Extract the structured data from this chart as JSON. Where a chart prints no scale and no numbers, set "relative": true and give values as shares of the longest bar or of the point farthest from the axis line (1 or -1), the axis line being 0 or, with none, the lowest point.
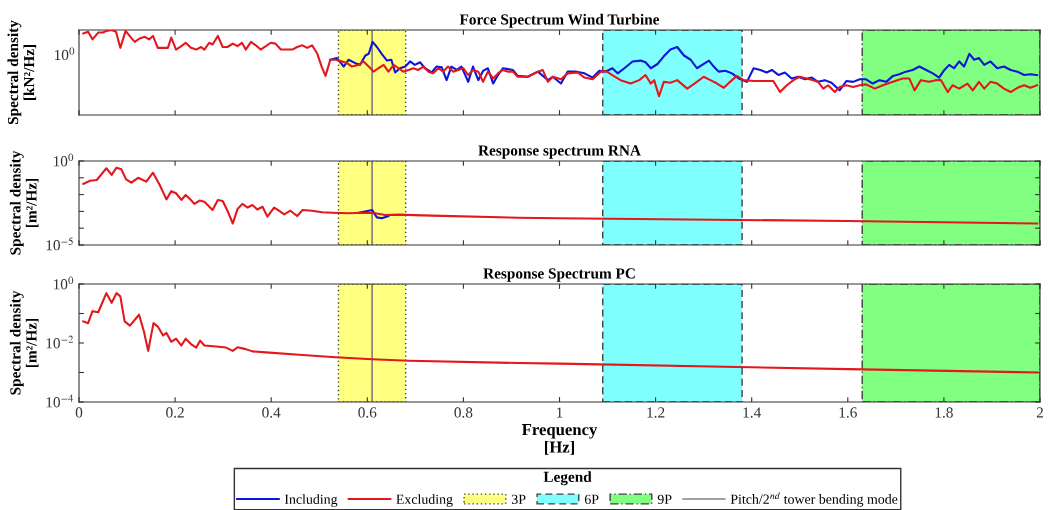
{
  "chart_data": [
    {
      "type": "line",
      "title": "Force Spectrum Wind Turbine",
      "ylabel": "Spectral density\n[kN²/Hz]",
      "relative": true,
      "annotations": [
        "10$^{0}$"
      ],
      "grid": false,
      "legend": "bottom",
      "legend_title": "Legend",
      "tick_labels": "y",
      "xlim": [
        0,
        2
      ],
      "xticks": [
        0,
        0.2,
        0.4,
        0.6,
        0.8,
        1,
        1.2,
        1.4,
        1.6,
        1.8,
        2
      ],
      "bands": [
        {
          "axis": "x",
          "from": 0.54,
          "to": 0.68,
          "label": "3P",
          "color": "#ffff80"
        },
        {
          "axis": "x",
          "from": 1.09,
          "to": 1.38,
          "label": "6P",
          "color": "#80ffff"
        },
        {
          "axis": "x",
          "from": 1.63,
          "to": 2,
          "label": "9P",
          "color": "#80ff80"
        }
      ],
      "ref_lines": [
        {
          "axis": "x",
          "value": 0.61,
          "label": "Pitch/2$^{nd}$ tower bending mode",
          "color": "#808080"
        }
      ],
      "series": [
        {
          "name": "Including",
          "color": "#0b16d9",
          "x": [
            0.523,
            0.537,
            0.551,
            0.561,
            0.575,
            0.585,
            0.596,
            0.603,
            0.611,
            0.62,
            0.63,
            0.641,
            0.65,
            0.658,
            0.668,
            0.679,
            0.689,
            0.699,
            0.71,
            0.72,
            0.734,
            0.744,
            0.755,
            0.765,
            0.775,
            0.786,
            0.796,
            0.81,
            0.82,
            0.831,
            0.841,
            0.851,
            0.862,
            0.872,
            0.882,
            0.893,
            0.903,
            0.913,
            0.934,
            0.955,
            0.976,
            0.986,
            1.003,
            1.017,
            1.035,
            1.052,
            1.069,
            1.083,
            1.096,
            1.11,
            1.121,
            1.135,
            1.152,
            1.169,
            1.179,
            1.19,
            1.204,
            1.217,
            1.231,
            1.245,
            1.259,
            1.273,
            1.286,
            1.297,
            1.311,
            1.321,
            1.331,
            1.345,
            1.359,
            1.373,
            1.39,
            1.404,
            1.418,
            1.431,
            1.442,
            1.456,
            1.469,
            1.483,
            1.497,
            1.511,
            1.525,
            1.538,
            1.552,
            1.566,
            1.583,
            1.597,
            1.611,
            1.625,
            1.638,
            1.652,
            1.666,
            1.68,
            1.694,
            1.707,
            1.721,
            1.735,
            1.749,
            1.763,
            1.777,
            1.79,
            1.801,
            1.811,
            1.821,
            1.832,
            1.842,
            1.853,
            1.863,
            1.873,
            1.884,
            1.897,
            1.911,
            1.925,
            1.939,
            1.953,
            1.967,
            1.98,
            1.994
          ],
          "values": [
            0.65,
            0.67,
            0.57,
            0.65,
            0.61,
            0.59,
            0.7,
            0.72,
            0.86,
            0.8,
            0.72,
            0.64,
            0.65,
            0.5,
            0.55,
            0.57,
            0.63,
            0.59,
            0.62,
            0.55,
            0.5,
            0.57,
            0.56,
            0.41,
            0.57,
            0.53,
            0.57,
            0.39,
            0.57,
            0.41,
            0.52,
            0.55,
            0.37,
            0.47,
            0.55,
            0.54,
            0.53,
            0.46,
            0.45,
            0.51,
            0.41,
            0.45,
            0.37,
            0.51,
            0.51,
            0.49,
            0.44,
            0.52,
            0.51,
            0.55,
            0.49,
            0.55,
            0.63,
            0.64,
            0.62,
            0.55,
            0.6,
            0.69,
            0.77,
            0.8,
            0.7,
            0.65,
            0.55,
            0.59,
            0.64,
            0.57,
            0.51,
            0.52,
            0.49,
            0.43,
            0.39,
            0.55,
            0.53,
            0.5,
            0.53,
            0.47,
            0.5,
            0.43,
            0.45,
            0.42,
            0.44,
            0.39,
            0.41,
            0.38,
            0.29,
            0.4,
            0.39,
            0.42,
            0.42,
            0.37,
            0.41,
            0.39,
            0.46,
            0.48,
            0.51,
            0.53,
            0.57,
            0.53,
            0.49,
            0.44,
            0.53,
            0.59,
            0.55,
            0.63,
            0.57,
            0.72,
            0.65,
            0.67,
            0.59,
            0.63,
            0.55,
            0.57,
            0.53,
            0.51,
            0.47,
            0.48,
            0.47
          ]
        },
        {
          "name": "Excluding",
          "color": "#e3171c",
          "x": [
            0.009,
            0.019,
            0.028,
            0.04,
            0.05,
            0.057,
            0.068,
            0.077,
            0.086,
            0.097,
            0.107,
            0.116,
            0.126,
            0.137,
            0.146,
            0.154,
            0.164,
            0.175,
            0.185,
            0.192,
            0.202,
            0.213,
            0.222,
            0.233,
            0.244,
            0.254,
            0.261,
            0.271,
            0.278,
            0.289,
            0.299,
            0.309,
            0.32,
            0.33,
            0.339,
            0.347,
            0.358,
            0.368,
            0.378,
            0.389,
            0.399,
            0.409,
            0.42,
            0.43,
            0.444,
            0.454,
            0.465,
            0.475,
            0.485,
            0.496,
            0.505,
            0.513,
            0.523,
            0.534,
            0.548,
            0.558,
            0.568,
            0.582,
            0.592,
            0.603,
            0.613,
            0.623,
            0.634,
            0.644,
            0.655,
            0.665,
            0.675,
            0.686,
            0.696,
            0.706,
            0.717,
            0.727,
            0.737,
            0.748,
            0.758,
            0.768,
            0.779,
            0.789,
            0.8,
            0.81,
            0.82,
            0.831,
            0.841,
            0.851,
            0.862,
            0.872,
            0.882,
            0.893,
            0.903,
            0.913,
            0.934,
            0.955,
            0.965,
            0.976,
            0.986,
            1.003,
            1.017,
            1.038,
            1.052,
            1.069,
            1.086,
            1.096,
            1.11,
            1.127,
            1.148,
            1.166,
            1.179,
            1.19,
            1.197,
            1.207,
            1.217,
            1.231,
            1.245,
            1.266,
            1.286,
            1.3,
            1.314,
            1.328,
            1.342,
            1.355,
            1.369,
            1.383,
            1.404,
            1.425,
            1.445,
            1.459,
            1.473,
            1.487,
            1.5,
            1.514,
            1.528,
            1.538,
            1.549,
            1.559,
            1.573,
            1.583,
            1.597,
            1.611,
            1.625,
            1.638,
            1.656,
            1.673,
            1.694,
            1.714,
            1.728,
            1.739,
            1.752,
            1.769,
            1.783,
            1.794,
            1.808,
            1.818,
            1.832,
            1.849,
            1.86,
            1.873,
            1.884,
            1.897,
            1.911,
            1.925,
            1.939,
            1.953,
            1.967,
            1.98,
            1.994
          ],
          "values": [
            0.96,
            0.98,
            0.89,
            0.97,
            0.97,
            0.99,
            1,
            0.98,
            0.79,
            0.99,
            0.92,
            0.86,
            0.9,
            0.92,
            0.89,
            0.93,
            0.79,
            0.79,
            0.79,
            0.91,
            0.77,
            0.81,
            0.85,
            0.79,
            0.77,
            0.8,
            0.77,
            0.85,
            0.83,
            0.93,
            0.8,
            0.8,
            0.84,
            0.81,
            0.85,
            0.77,
            0.86,
            0.82,
            0.77,
            0.81,
            0.85,
            0.84,
            0.77,
            0.77,
            0.77,
            0.8,
            0.82,
            0.79,
            0.82,
            0.72,
            0.57,
            0.46,
            0.65,
            0.65,
            0.63,
            0.61,
            0.57,
            0.59,
            0.63,
            0.57,
            0.51,
            0.55,
            0.59,
            0.51,
            0.59,
            0.55,
            0.51,
            0.53,
            0.55,
            0.53,
            0.57,
            0.51,
            0.49,
            0.55,
            0.51,
            0.57,
            0.51,
            0.53,
            0.55,
            0.47,
            0.53,
            0.51,
            0.39,
            0.51,
            0.43,
            0.49,
            0.53,
            0.51,
            0.51,
            0.45,
            0.45,
            0.51,
            0.53,
            0.39,
            0.45,
            0.42,
            0.49,
            0.5,
            0.44,
            0.42,
            0.51,
            0.52,
            0.47,
            0.41,
            0.37,
            0.41,
            0.47,
            0.37,
            0.41,
            0.22,
            0.39,
            0.38,
            0.41,
            0.31,
            0.39,
            0.45,
            0.41,
            0.37,
            0.32,
            0.39,
            0.46,
            0.41,
            0.4,
            0.4,
            0.4,
            0.27,
            0.35,
            0.41,
            0.45,
            0.43,
            0.41,
            0.39,
            0.31,
            0.35,
            0.27,
            0.33,
            0.35,
            0.33,
            0.35,
            0.36,
            0.31,
            0.35,
            0.39,
            0.43,
            0.43,
            0.29,
            0.41,
            0.39,
            0.41,
            0.41,
            0.27,
            0.35,
            0.31,
            0.37,
            0.29,
            0.39,
            0.31,
            0.39,
            0.37,
            0.31,
            0.27,
            0.32,
            0.35,
            0.32,
            0.35
          ]
        }
      ]
    },
    {
      "type": "line",
      "title": "Response spectrum RNA",
      "ylabel": "Spectral density\n[m²/Hz]",
      "log": "y",
      "grid": false,
      "tick_labels": "y",
      "xlim": [
        0,
        2
      ],
      "xticks": [
        0,
        0.2,
        0.4,
        0.6,
        0.8,
        1,
        1.2,
        1.4,
        1.6,
        1.8,
        2
      ],
      "ylim": [
        1e-05,
        1
      ],
      "yticks": [
        {
          "value": 1,
          "label": "10$^{0}$"
        },
        {
          "value": 0.1,
          "label": null
        },
        {
          "value": 0.01,
          "label": null
        },
        {
          "value": 0.001,
          "label": null
        },
        {
          "value": 0.0001,
          "label": null
        },
        {
          "value": 1e-05,
          "label": "10$^{−5}$"
        }
      ],
      "bands": [
        {
          "axis": "x",
          "from": 0.54,
          "to": 0.68,
          "color": "#ffff80"
        },
        {
          "axis": "x",
          "from": 1.09,
          "to": 1.38,
          "color": "#80ffff"
        },
        {
          "axis": "x",
          "from": 1.63,
          "to": 2,
          "color": "#80ff80"
        }
      ],
      "ref_lines": [
        {
          "axis": "x",
          "value": 0.61,
          "color": "#808080"
        }
      ],
      "series": [
        {
          "color": "#0b16d9",
          "x": [
            0.582,
            0.603,
            0.61,
            0.62,
            0.63,
            0.644
          ],
          "values": [
            0.00084,
            0.0011,
            0.0012,
            0.00044,
            0.00039,
            0.00053
          ]
        },
        {
          "color": "#e3171c",
          "x": [
            0.009,
            0.023,
            0.037,
            0.057,
            0.068,
            0.078,
            0.088,
            0.098,
            0.109,
            0.123,
            0.14,
            0.154,
            0.168,
            0.182,
            0.192,
            0.202,
            0.213,
            0.222,
            0.233,
            0.24,
            0.251,
            0.261,
            0.278,
            0.289,
            0.299,
            0.309,
            0.32,
            0.33,
            0.34,
            0.351,
            0.361,
            0.371,
            0.382,
            0.392,
            0.406,
            0.416,
            0.427,
            0.44,
            0.454,
            0.465,
            0.485,
            0.506,
            0.527,
            0.561,
            0.596,
            0.617,
            0.637,
            0.665,
            0.734,
            0.913,
            1.0,
            1.6,
            1.994
          ],
          "values": [
            0.043,
            0.067,
            0.074,
            0.37,
            0.15,
            0.4,
            0.32,
            0.081,
            0.051,
            0.1,
            0.059,
            0.2,
            0.037,
            0.0052,
            0.016,
            0.012,
            0.0048,
            0.0095,
            0.0048,
            0.0028,
            0.0044,
            0.0038,
            0.0012,
            0.0048,
            0.0042,
            0.0011,
            0.00019,
            0.0014,
            0.0028,
            0.0017,
            0.0024,
            0.0013,
            0.0019,
            0.00049,
            0.0017,
            0.0011,
            0.00067,
            0.0011,
            0.00053,
            0.0012,
            0.0011,
            0.00088,
            0.00084,
            0.00077,
            0.00084,
            0.00077,
            0.00061,
            0.00064,
            0.00056,
            0.00042,
            0.00039,
            0.00027,
            0.00019
          ]
        }
      ]
    },
    {
      "type": "line",
      "title": "Response Spectrum PC",
      "ylabel": "Spectral density\n[m²/Hz]",
      "xlabel": "Frequency\n[Hz]",
      "log": "y",
      "grid": false,
      "xlim": [
        0,
        2
      ],
      "xticks": [
        0,
        0.2,
        0.4,
        0.6,
        0.8,
        1,
        1.2,
        1.4,
        1.6,
        1.8,
        2
      ],
      "ylim": [
        0.0001,
        1
      ],
      "yticks": [
        {
          "value": 1,
          "label": "10$^{0}$"
        },
        {
          "value": 0.1,
          "label": null
        },
        {
          "value": 0.01,
          "label": "10$^{−2}$"
        },
        {
          "value": 0.001,
          "label": null
        },
        {
          "value": 0.0001,
          "label": "10$^{−4}$"
        }
      ],
      "bands": [
        {
          "axis": "x",
          "from": 0.54,
          "to": 0.68,
          "color": "#ffff80"
        },
        {
          "axis": "x",
          "from": 1.09,
          "to": 1.38,
          "color": "#80ffff"
        },
        {
          "axis": "x",
          "from": 1.63,
          "to": 2,
          "color": "#80ff80"
        }
      ],
      "ref_lines": [
        {
          "axis": "x",
          "value": 0.61,
          "color": "#808080"
        }
      ],
      "series": [
        {
          "color": "#e3171c",
          "x": [
            0.009,
            0.019,
            0.028,
            0.04,
            0.057,
            0.068,
            0.078,
            0.086,
            0.095,
            0.106,
            0.125,
            0.135,
            0.144,
            0.155,
            0.164,
            0.175,
            0.182,
            0.192,
            0.202,
            0.213,
            0.222,
            0.233,
            0.244,
            0.252,
            0.261,
            0.285,
            0.306,
            0.32,
            0.33,
            0.347,
            0.361,
            0.389,
            0.458,
            0.534,
            0.61,
            0.686,
            0.913,
            1.0,
            1.6,
            1.994
          ],
          "values": [
            0.054,
            0.047,
            0.12,
            0.11,
            0.49,
            0.23,
            0.49,
            0.38,
            0.054,
            0.039,
            0.091,
            0.025,
            0.0054,
            0.047,
            0.036,
            0.018,
            0.022,
            0.011,
            0.014,
            0.0082,
            0.014,
            0.0092,
            0.007,
            0.012,
            0.0082,
            0.0076,
            0.007,
            0.0054,
            0.0072,
            0.0062,
            0.0052,
            0.0048,
            0.004,
            0.0033,
            0.0028,
            0.0025,
            0.0021,
            0.002,
            0.0013,
            0.001
          ]
        }
      ]
    }
  ]
}
